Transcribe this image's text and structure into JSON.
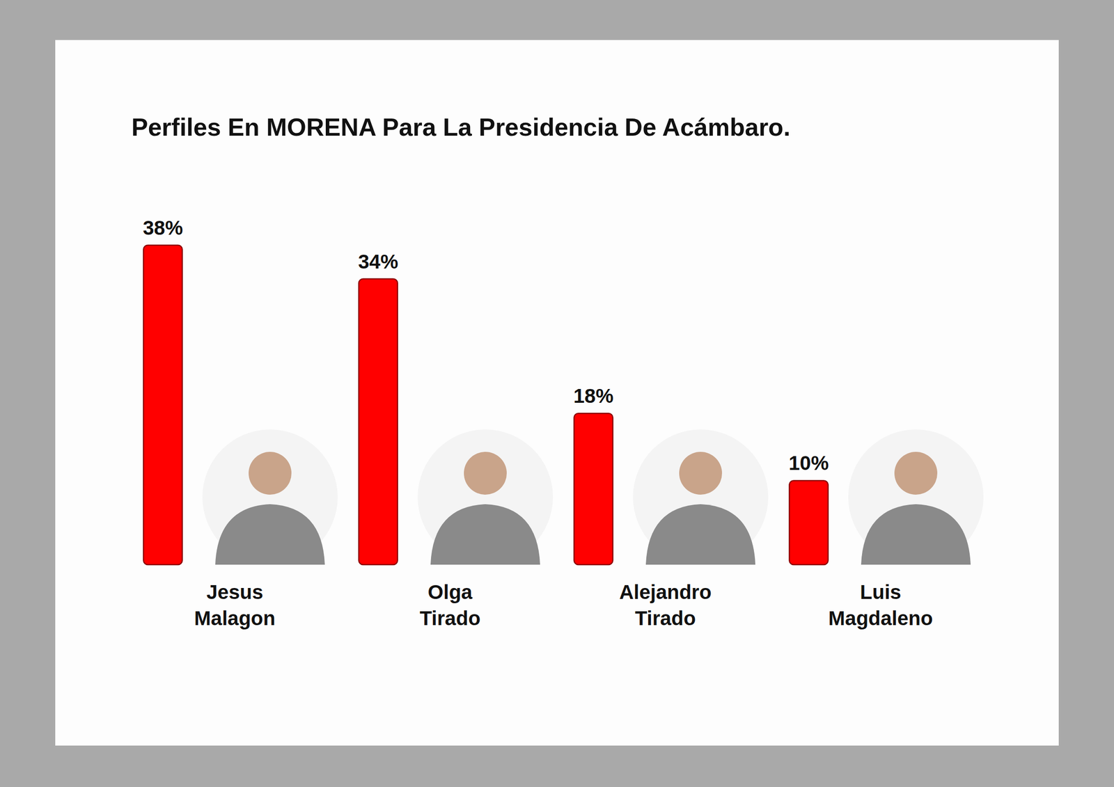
{
  "chart_data": {
    "type": "bar",
    "title": "Perfiles En MORENA Para La Presidencia De Acámbaro.",
    "categories": [
      "Jesus Malagon",
      "Olga Tirado",
      "Alejandro Tirado",
      "Luis Magdaleno"
    ],
    "values": [
      38,
      34,
      18,
      10
    ],
    "value_labels": [
      "38%",
      "34%",
      "18%",
      "10%"
    ],
    "color": "#ff0000",
    "ylim": [
      0,
      40
    ],
    "data_labels": true,
    "tick_labels": "x"
  }
}
